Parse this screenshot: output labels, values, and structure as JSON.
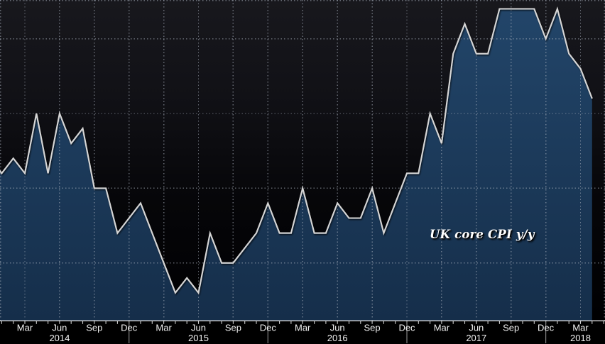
{
  "chart_data": {
    "type": "area",
    "title": "",
    "annotation": {
      "text": "UK core CPI y/y"
    },
    "series": [
      {
        "name": "UK core CPI y/y",
        "unit": "percent_yoy",
        "months": [
          "Dec 2013",
          "Jan 2014",
          "Feb 2014",
          "Mar 2014",
          "Apr 2014",
          "May 2014",
          "Jun 2014",
          "Jul 2014",
          "Aug 2014",
          "Sep 2014",
          "Oct 2014",
          "Nov 2014",
          "Dec 2014",
          "Jan 2015",
          "Feb 2015",
          "Mar 2015",
          "Apr 2015",
          "May 2015",
          "Jun 2015",
          "Jul 2015",
          "Aug 2015",
          "Sep 2015",
          "Oct 2015",
          "Nov 2015",
          "Dec 2015",
          "Jan 2016",
          "Feb 2016",
          "Mar 2016",
          "Apr 2016",
          "May 2016",
          "Jun 2016",
          "Jul 2016",
          "Aug 2016",
          "Sep 2016",
          "Oct 2016",
          "Nov 2016",
          "Dec 2016",
          "Jan 2017",
          "Feb 2017",
          "Mar 2017",
          "Apr 2017",
          "May 2017",
          "Jun 2017",
          "Jul 2017",
          "Aug 2017",
          "Sep 2017",
          "Oct 2017",
          "Nov 2017",
          "Dec 2017",
          "Jan 2018",
          "Feb 2018",
          "Mar 2018",
          "Apr 2018"
        ],
        "values": [
          1.7,
          1.6,
          1.7,
          1.6,
          2.0,
          1.6,
          2.0,
          1.8,
          1.9,
          1.5,
          1.5,
          1.2,
          1.3,
          1.4,
          1.2,
          1.0,
          0.8,
          0.9,
          0.8,
          1.2,
          1.0,
          1.0,
          1.1,
          1.2,
          1.4,
          1.2,
          1.2,
          1.5,
          1.2,
          1.2,
          1.4,
          1.3,
          1.3,
          1.5,
          1.2,
          1.4,
          1.6,
          1.6,
          2.0,
          1.8,
          2.4,
          2.6,
          2.4,
          2.4,
          2.7,
          2.7,
          2.7,
          2.7,
          2.5,
          2.7,
          2.4,
          2.3,
          2.1
        ]
      }
    ],
    "xaxis": {
      "minor_ticks": "monthly",
      "quarter_ticks": [
        {
          "label": "Dec",
          "month_index": -1
        },
        {
          "label": "Mar",
          "month_index": 2
        },
        {
          "label": "Jun",
          "month_index": 5
        },
        {
          "label": "Sep",
          "month_index": 8
        },
        {
          "label": "Dec",
          "month_index": 11
        },
        {
          "label": "Mar",
          "month_index": 14
        },
        {
          "label": "Jun",
          "month_index": 17
        },
        {
          "label": "Sep",
          "month_index": 20
        },
        {
          "label": "Dec",
          "month_index": 23
        },
        {
          "label": "Mar",
          "month_index": 26
        },
        {
          "label": "Jun",
          "month_index": 29
        },
        {
          "label": "Sep",
          "month_index": 32
        },
        {
          "label": "Dec",
          "month_index": 35
        },
        {
          "label": "Mar",
          "month_index": 38
        },
        {
          "label": "Jun",
          "month_index": 41
        },
        {
          "label": "Sep",
          "month_index": 44
        },
        {
          "label": "Dec",
          "month_index": 47
        },
        {
          "label": "Mar",
          "month_index": 50
        }
      ],
      "year_labels": [
        {
          "label": "2014",
          "month_index": 5
        },
        {
          "label": "2015",
          "month_index": 17
        },
        {
          "label": "2016",
          "month_index": 29
        },
        {
          "label": "2017",
          "month_index": 41
        },
        {
          "label": "2018",
          "month_index": 50
        }
      ],
      "year_separators_month_index": [
        11,
        23,
        35,
        47
      ]
    },
    "yaxis": {
      "gridline_values": [
        2.5,
        2.0,
        1.5,
        1.0
      ],
      "labels_visible": false,
      "visible_range": [
        0.6,
        2.76
      ]
    },
    "grid": {
      "style": "dotted"
    },
    "legend": null
  },
  "colors": {
    "background_top": "#18181d",
    "background_upper_mid": "#111116",
    "background_lower_mid": "#060609",
    "background_bottom": "#000002",
    "area_top": "#224569",
    "area_bottom": "#152e4a",
    "line": "#d6d6d6",
    "grid": "rgba(170,177,190,0.55)",
    "axis_line": "#dcdcdc",
    "tick": "#cfcfcf",
    "axis_label": "#f2f2f2",
    "year_separator": "#828282",
    "below_axis_bg": "#000000",
    "annotation_text": "#ffffff"
  }
}
